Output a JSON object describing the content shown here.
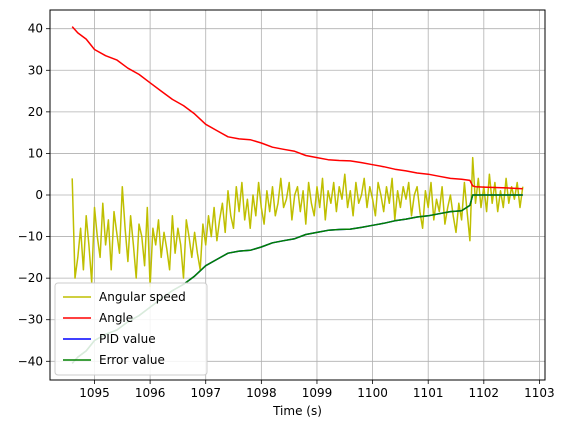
{
  "chart_data": {
    "type": "line",
    "title": "",
    "xlabel": "Time (s)",
    "ylabel": "",
    "xlim": [
      1094.2,
      1103.1
    ],
    "ylim": [
      -44.5,
      44.5
    ],
    "xticks": [
      1095,
      1096,
      1097,
      1098,
      1099,
      1100,
      1101,
      1102,
      1103
    ],
    "yticks": [
      -40,
      -30,
      -20,
      -10,
      0,
      10,
      20,
      30,
      40
    ],
    "grid": true,
    "legend": {
      "placement": "lower-left",
      "entries": [
        "Angular speed",
        "Angle",
        "PID value",
        "Error value"
      ]
    },
    "series": [
      {
        "name": "Angular speed",
        "color": "#bfbf00",
        "x": [
          1094.6,
          1094.65,
          1094.7,
          1094.75,
          1094.8,
          1094.85,
          1094.9,
          1094.95,
          1095.0,
          1095.05,
          1095.1,
          1095.15,
          1095.2,
          1095.25,
          1095.3,
          1095.35,
          1095.4,
          1095.45,
          1095.5,
          1095.55,
          1095.6,
          1095.65,
          1095.7,
          1095.75,
          1095.8,
          1095.85,
          1095.9,
          1095.95,
          1096.0,
          1096.05,
          1096.1,
          1096.15,
          1096.2,
          1096.25,
          1096.3,
          1096.35,
          1096.4,
          1096.45,
          1096.5,
          1096.55,
          1096.6,
          1096.65,
          1096.7,
          1096.75,
          1096.8,
          1096.85,
          1096.9,
          1096.95,
          1097.0,
          1097.05,
          1097.1,
          1097.15,
          1097.2,
          1097.25,
          1097.3,
          1097.35,
          1097.4,
          1097.45,
          1097.5,
          1097.55,
          1097.6,
          1097.65,
          1097.7,
          1097.75,
          1097.8,
          1097.85,
          1097.9,
          1097.95,
          1098.0,
          1098.05,
          1098.1,
          1098.15,
          1098.2,
          1098.25,
          1098.3,
          1098.35,
          1098.4,
          1098.45,
          1098.5,
          1098.55,
          1098.6,
          1098.65,
          1098.7,
          1098.75,
          1098.8,
          1098.85,
          1098.9,
          1098.95,
          1099.0,
          1099.05,
          1099.1,
          1099.15,
          1099.2,
          1099.25,
          1099.3,
          1099.35,
          1099.4,
          1099.45,
          1099.5,
          1099.55,
          1099.6,
          1099.65,
          1099.7,
          1099.75,
          1099.8,
          1099.85,
          1099.9,
          1099.95,
          1100.0,
          1100.05,
          1100.1,
          1100.15,
          1100.2,
          1100.25,
          1100.3,
          1100.35,
          1100.4,
          1100.45,
          1100.5,
          1100.55,
          1100.6,
          1100.65,
          1100.7,
          1100.75,
          1100.8,
          1100.85,
          1100.9,
          1100.95,
          1101.0,
          1101.05,
          1101.1,
          1101.15,
          1101.2,
          1101.25,
          1101.3,
          1101.35,
          1101.4,
          1101.45,
          1101.5,
          1101.55,
          1101.6,
          1101.65,
          1101.7,
          1101.75,
          1101.8,
          1101.85,
          1101.9,
          1101.95,
          1102.0,
          1102.05,
          1102.1,
          1102.15,
          1102.2,
          1102.25,
          1102.3,
          1102.35,
          1102.4,
          1102.45,
          1102.5,
          1102.55,
          1102.6,
          1102.65,
          1102.7
        ],
        "y": [
          4,
          -20,
          -15,
          -8,
          -18,
          -5,
          -12,
          -21,
          -3,
          -10,
          -15,
          -2,
          -12,
          -6,
          -18,
          -4,
          -9,
          -14,
          2,
          -8,
          -16,
          -5,
          -12,
          -20,
          -7,
          -10,
          -17,
          -3,
          -22,
          -8,
          -12,
          -6,
          -15,
          -9,
          -13,
          -18,
          -5,
          -14,
          -8,
          -12,
          -20,
          -6,
          -10,
          -15,
          -9,
          -14,
          -18,
          -7,
          -12,
          -5,
          -10,
          -3,
          -11,
          -6,
          -2,
          -9,
          1,
          -5,
          -8,
          2,
          -4,
          3,
          -6,
          -1,
          -8,
          0,
          -5,
          3,
          -3,
          -7,
          1,
          -4,
          2,
          -5,
          -2,
          4,
          -3,
          -1,
          3,
          -6,
          0,
          2,
          -4,
          1,
          -7,
          3,
          -2,
          -5,
          2,
          -3,
          4,
          -6,
          1,
          -2,
          3,
          -4,
          2,
          -1,
          5,
          -3,
          1,
          -5,
          3,
          -2,
          0,
          4,
          -3,
          2,
          -1,
          -5,
          3,
          0,
          -4,
          2,
          -2,
          4,
          -6,
          1,
          -3,
          2,
          -1,
          3,
          -5,
          0,
          2,
          -4,
          -8,
          1,
          -3,
          3,
          -6,
          -1,
          -4,
          2,
          -7,
          -3,
          0,
          -5,
          -9,
          -2,
          -6,
          3,
          -4,
          -11,
          9,
          -2,
          4,
          -3,
          2,
          -4,
          5,
          -2,
          3,
          -4,
          1,
          -3,
          4,
          -2,
          2,
          -1,
          3,
          -3,
          2
        ]
      },
      {
        "name": "Angle",
        "color": "#ff0000",
        "x": [
          1094.6,
          1094.7,
          1094.85,
          1095.0,
          1095.2,
          1095.4,
          1095.6,
          1095.8,
          1096.0,
          1096.2,
          1096.4,
          1096.6,
          1096.8,
          1097.0,
          1097.2,
          1097.4,
          1097.6,
          1097.8,
          1098.0,
          1098.2,
          1098.4,
          1098.6,
          1098.8,
          1099.0,
          1099.2,
          1099.4,
          1099.6,
          1099.8,
          1100.0,
          1100.2,
          1100.4,
          1100.6,
          1100.8,
          1101.0,
          1101.2,
          1101.4,
          1101.6,
          1101.75,
          1101.8,
          1101.85,
          1102.0,
          1102.2,
          1102.4,
          1102.7
        ],
        "y": [
          40.5,
          39,
          37.5,
          35,
          33.5,
          32.5,
          30.5,
          29,
          27,
          25,
          23,
          21.5,
          19.5,
          17,
          15.5,
          14,
          13.5,
          13.3,
          12.5,
          11.5,
          11,
          10.5,
          9.5,
          9,
          8.5,
          8.3,
          8.2,
          7.8,
          7.3,
          6.8,
          6.2,
          5.8,
          5.3,
          5,
          4.5,
          4,
          3.8,
          3.5,
          2.2,
          2,
          1.9,
          1.8,
          1.7,
          1.5
        ]
      },
      {
        "name": "PID value",
        "color": "#0000ff",
        "x": [
          1094.6,
          1094.7,
          1094.85,
          1095.0,
          1095.2,
          1095.4,
          1095.6,
          1095.8,
          1096.0,
          1096.2,
          1096.4,
          1096.6,
          1096.8,
          1097.0,
          1097.2,
          1097.4,
          1097.6,
          1097.8,
          1098.0,
          1098.2,
          1098.4,
          1098.6,
          1098.8,
          1099.0,
          1099.2,
          1099.4,
          1099.6,
          1099.8,
          1100.0,
          1100.2,
          1100.4,
          1100.6,
          1100.8,
          1101.0,
          1101.2,
          1101.4,
          1101.6,
          1101.75,
          1101.8,
          1101.85,
          1102.0,
          1102.2,
          1102.4,
          1102.7
        ],
        "y": [
          -40.5,
          -39,
          -37.5,
          -35,
          -33.5,
          -32.5,
          -30.5,
          -29,
          -27,
          -25,
          -23,
          -21.5,
          -19.5,
          -17,
          -15.5,
          -14,
          -13.5,
          -13.3,
          -12.5,
          -11.5,
          -11,
          -10.5,
          -9.5,
          -9,
          -8.5,
          -8.3,
          -8.2,
          -7.8,
          -7.3,
          -6.8,
          -6.2,
          -5.8,
          -5.3,
          -5,
          -4.5,
          -4,
          -3.8,
          -2.5,
          0,
          0,
          0,
          0,
          0,
          0
        ]
      },
      {
        "name": "Error value",
        "color": "#008000",
        "x": [
          1094.6,
          1094.7,
          1094.85,
          1095.0,
          1095.2,
          1095.4,
          1095.6,
          1095.8,
          1096.0,
          1096.2,
          1096.4,
          1096.6,
          1096.8,
          1097.0,
          1097.2,
          1097.4,
          1097.6,
          1097.8,
          1098.0,
          1098.2,
          1098.4,
          1098.6,
          1098.8,
          1099.0,
          1099.2,
          1099.4,
          1099.6,
          1099.8,
          1100.0,
          1100.2,
          1100.4,
          1100.6,
          1100.8,
          1101.0,
          1101.2,
          1101.4,
          1101.6,
          1101.75,
          1101.8,
          1101.85,
          1102.0,
          1102.2,
          1102.4,
          1102.7
        ],
        "y": [
          -40.5,
          -39,
          -37.5,
          -35,
          -33.5,
          -32.5,
          -30.5,
          -29,
          -27,
          -25,
          -23,
          -21.5,
          -19.5,
          -17,
          -15.5,
          -14,
          -13.5,
          -13.3,
          -12.5,
          -11.5,
          -11,
          -10.5,
          -9.5,
          -9,
          -8.5,
          -8.3,
          -8.2,
          -7.8,
          -7.3,
          -6.8,
          -6.2,
          -5.8,
          -5.3,
          -5,
          -4.5,
          -4,
          -3.8,
          -2.5,
          0,
          0,
          0,
          0,
          0,
          0
        ]
      }
    ]
  }
}
